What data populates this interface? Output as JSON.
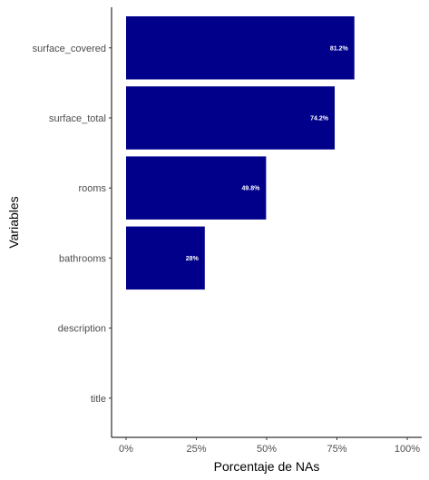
{
  "chart_data": {
    "type": "bar",
    "orientation": "horizontal",
    "title": "",
    "xlabel": "Porcentaje de NAs",
    "ylabel": "Variables",
    "categories": [
      "surface_covered",
      "surface_total",
      "rooms",
      "bathrooms",
      "description",
      "title"
    ],
    "values": [
      81.2,
      74.2,
      49.8,
      28,
      0,
      0
    ],
    "data_labels": [
      "81.2%",
      "74.2%",
      "49.8%",
      "28%",
      "",
      ""
    ],
    "x_ticks": [
      0,
      25,
      50,
      75,
      100
    ],
    "x_tick_labels": [
      "0%",
      "25%",
      "50%",
      "75%",
      "100%"
    ],
    "xlim": [
      0,
      100
    ],
    "bar_color": "#00008B",
    "grid": false,
    "legend": "none"
  }
}
